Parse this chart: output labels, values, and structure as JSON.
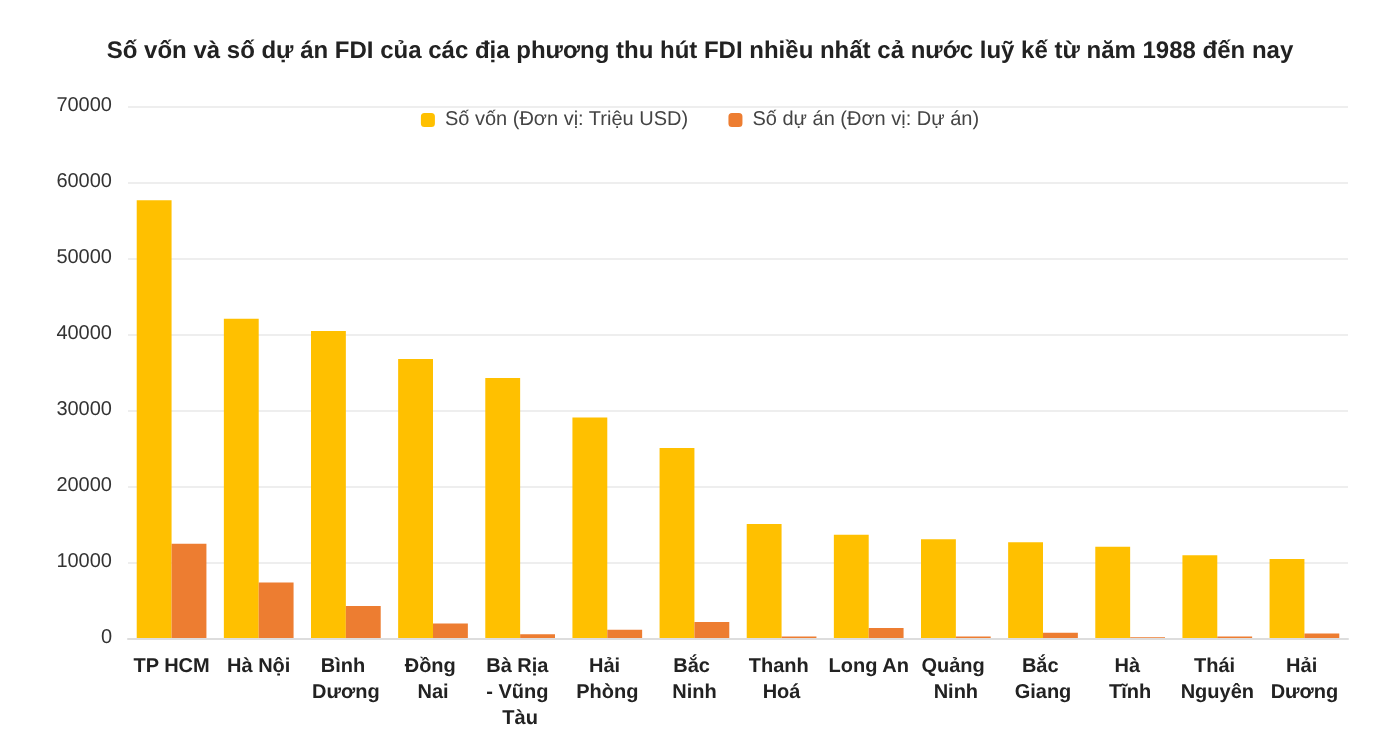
{
  "chart_data": {
    "type": "bar",
    "title": "Số vốn và số dự án FDI của các địa phương thu hút FDI nhiều nhất cả nước luỹ kế từ năm 1988 đến nay",
    "categories": [
      "TP HCM",
      "Hà Nội",
      "Bình Dương",
      "Đồng Nai",
      "Bà Rịa - Vũng Tàu",
      "Hải Phòng",
      "Bắc Ninh",
      "Thanh Hoá",
      "Long An",
      "Quảng Ninh",
      "Bắc Giang",
      "Hà Tĩnh",
      "Thái Nguyên",
      "Hải Dương"
    ],
    "series": [
      {
        "name": "Số vốn (Đơn vị: Triệu USD)",
        "color": "#ffc000",
        "values": [
          57600,
          42000,
          40400,
          36700,
          34200,
          29000,
          25000,
          15000,
          13600,
          13000,
          12600,
          12000,
          10900,
          10400
        ]
      },
      {
        "name": "Số dự án (Đơn vị: Dự án)",
        "color": "#ed7d31",
        "values": [
          12400,
          7300,
          4200,
          1900,
          500,
          1100,
          2100,
          200,
          1300,
          200,
          700,
          100,
          200,
          600
        ]
      }
    ],
    "ylim": [
      0,
      70000
    ],
    "yticks": [
      0,
      10000,
      20000,
      30000,
      40000,
      50000,
      60000,
      70000
    ],
    "grid": "y",
    "legend": "top"
  }
}
